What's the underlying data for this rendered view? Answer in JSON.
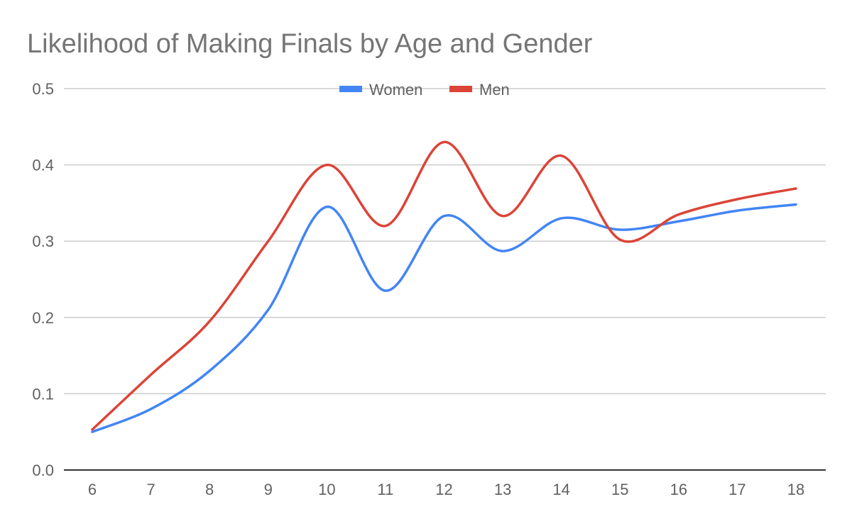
{
  "chart_data": {
    "type": "line",
    "title": "Likelihood of Making Finals by Age and Gender",
    "xlabel": "",
    "ylabel": "",
    "x": [
      6,
      7,
      8,
      9,
      10,
      11,
      12,
      13,
      14,
      15,
      16,
      17,
      18
    ],
    "series": [
      {
        "name": "Women",
        "color": "#4285f4",
        "values": [
          0.05,
          0.08,
          0.13,
          0.21,
          0.345,
          0.235,
          0.333,
          0.287,
          0.33,
          0.315,
          0.326,
          0.34,
          0.348
        ]
      },
      {
        "name": "Men",
        "color": "#db4437",
        "values": [
          0.053,
          0.125,
          0.195,
          0.3,
          0.4,
          0.32,
          0.43,
          0.333,
          0.412,
          0.302,
          0.335,
          0.355,
          0.369
        ]
      }
    ],
    "ylim": [
      0,
      0.5
    ],
    "yticks": [
      "0.0",
      "0.1",
      "0.2",
      "0.3",
      "0.4",
      "0.5"
    ],
    "xticks": [
      "6",
      "7",
      "8",
      "9",
      "10",
      "11",
      "12",
      "13",
      "14",
      "15",
      "16",
      "17",
      "18"
    ],
    "grid": true,
    "legend": "top-center"
  }
}
